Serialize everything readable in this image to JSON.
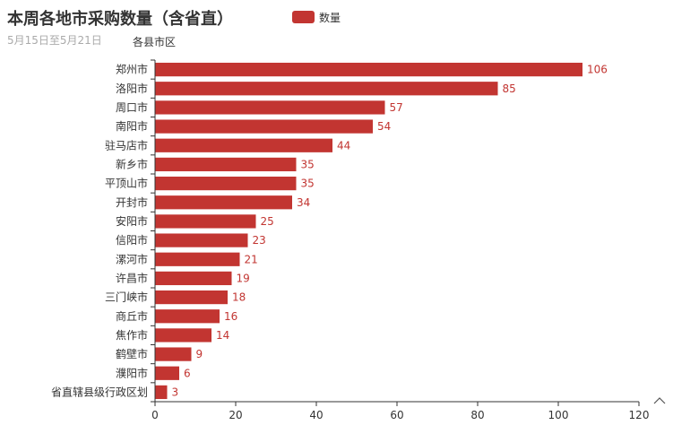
{
  "chart_data": {
    "type": "bar",
    "orientation": "horizontal",
    "title": "本周各地市采购数量（含省直）",
    "subtitle": "5月15日至5月21日",
    "ylabel": "各县市区",
    "xlabel": "",
    "legend": {
      "entries": [
        "数量"
      ],
      "placement": "top-center"
    },
    "categories": [
      "郑州市",
      "洛阳市",
      "周口市",
      "南阳市",
      "驻马店市",
      "新乡市",
      "平顶山市",
      "开封市",
      "安阳市",
      "信阳市",
      "漯河市",
      "许昌市",
      "三门峡市",
      "商丘市",
      "焦作市",
      "鹤壁市",
      "濮阳市",
      "省直辖县级行政区划"
    ],
    "series": [
      {
        "name": "数量",
        "values": [
          106,
          85,
          57,
          54,
          44,
          35,
          35,
          34,
          25,
          23,
          21,
          19,
          18,
          16,
          14,
          9,
          6,
          3
        ]
      }
    ],
    "xlim": [
      0,
      120
    ],
    "xticks": [
      0,
      20,
      40,
      60,
      80,
      100,
      120
    ],
    "grid": false,
    "data_labels": true,
    "color": "#c23531"
  }
}
